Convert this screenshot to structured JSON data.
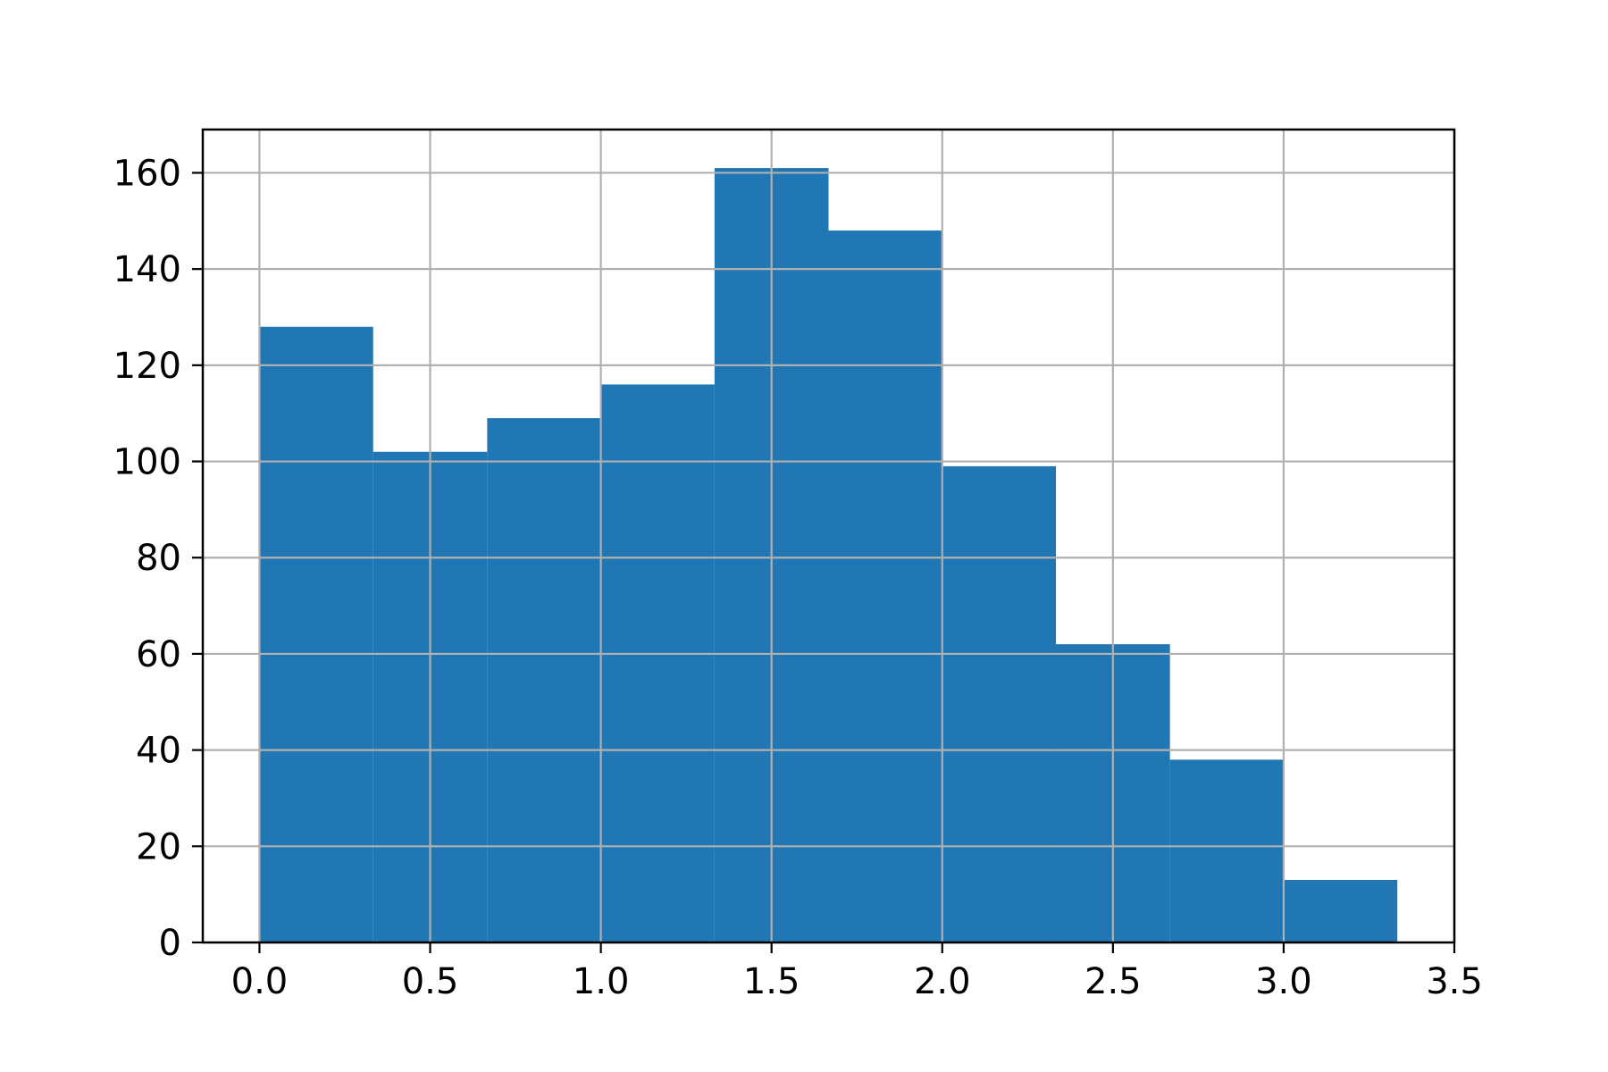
{
  "chart_data": {
    "type": "bar",
    "bar_style": "histogram",
    "bins": [
      {
        "start": 0.0,
        "end": 0.333,
        "count": 128
      },
      {
        "start": 0.333,
        "end": 0.667,
        "count": 102
      },
      {
        "start": 0.667,
        "end": 1.0,
        "count": 109
      },
      {
        "start": 1.0,
        "end": 1.333,
        "count": 116
      },
      {
        "start": 1.333,
        "end": 1.667,
        "count": 161
      },
      {
        "start": 1.667,
        "end": 2.0,
        "count": 148
      },
      {
        "start": 2.0,
        "end": 2.333,
        "count": 99
      },
      {
        "start": 2.333,
        "end": 2.667,
        "count": 62
      },
      {
        "start": 2.667,
        "end": 3.0,
        "count": 38
      },
      {
        "start": 3.0,
        "end": 3.333,
        "count": 13
      }
    ],
    "xlim": [
      -0.166,
      3.5
    ],
    "ylim": [
      0,
      169
    ],
    "x_ticks": [
      "0.0",
      "0.5",
      "1.0",
      "1.5",
      "2.0",
      "2.5",
      "3.0",
      "3.5"
    ],
    "y_ticks": [
      "0",
      "20",
      "40",
      "60",
      "80",
      "100",
      "120",
      "140",
      "160"
    ],
    "title": "",
    "xlabel": "",
    "ylabel": "",
    "grid": true,
    "legend": "none",
    "colors": {
      "bar": "#2077b4",
      "grid": "#b0b0b0",
      "axes": "#000000",
      "background": "#ffffff"
    }
  }
}
